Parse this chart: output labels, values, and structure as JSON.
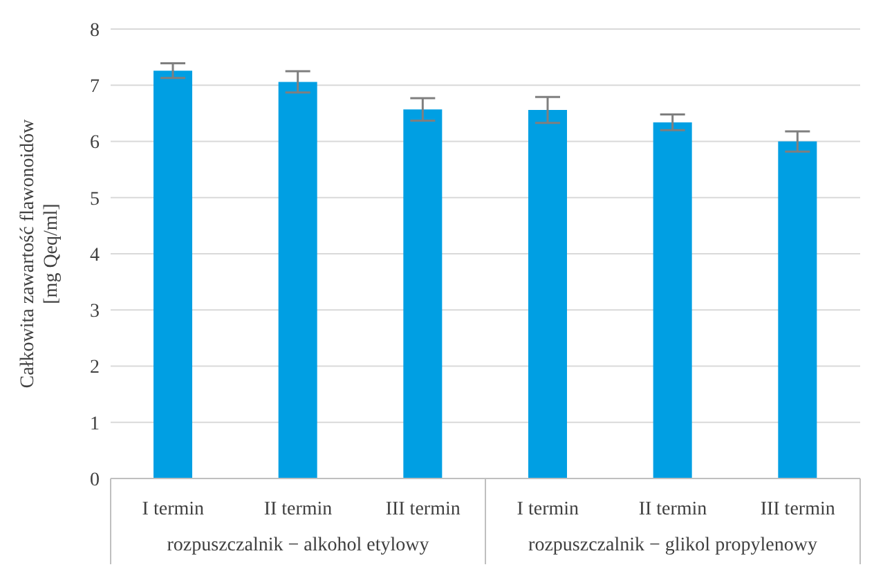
{
  "chart_data": {
    "type": "bar",
    "ylabel": "Całkowita zawartość flawonoidów\n[mg Qeq/ml]",
    "categories": [
      "I termin",
      "II termin",
      "III termin",
      "I termin",
      "II termin",
      "III termin"
    ],
    "values": [
      7.26,
      7.06,
      6.57,
      6.56,
      6.34,
      6.0
    ],
    "errors": [
      0.13,
      0.19,
      0.2,
      0.23,
      0.14,
      0.18
    ],
    "color": "#009fe3",
    "annotations": [
      "rozpuszczalnik − alkohol etylowy",
      "rozpuszczalnik − glikol propylenowy"
    ],
    "ylim": [
      0,
      8
    ],
    "yticks": [
      0,
      1,
      2,
      3,
      4,
      5,
      6,
      7,
      8
    ],
    "grid": "y",
    "legend": false
  }
}
